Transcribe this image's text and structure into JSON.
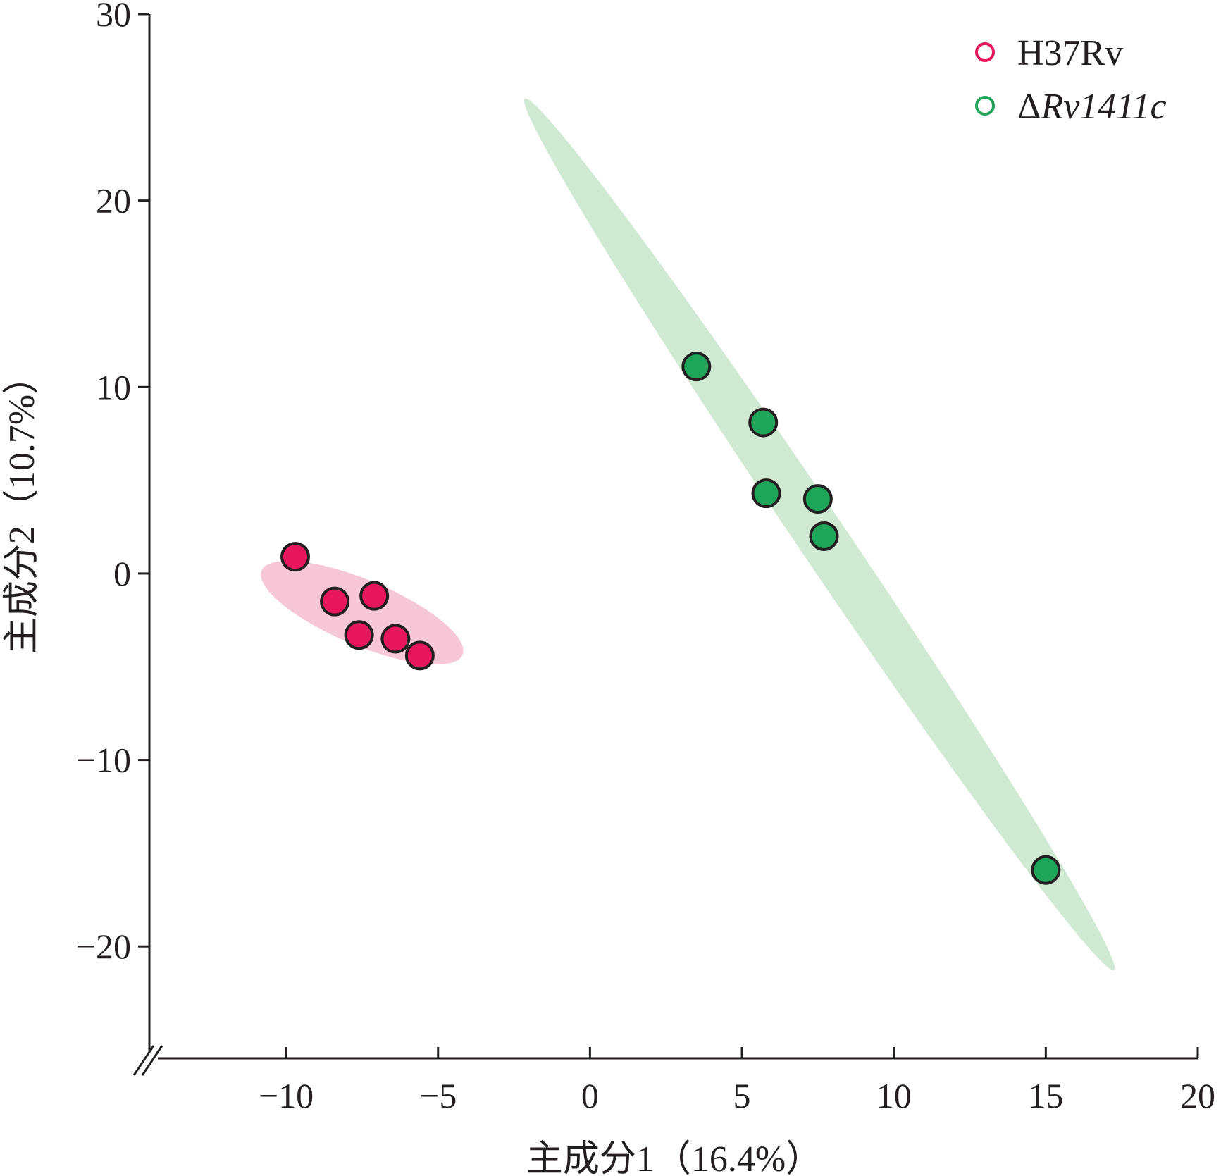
{
  "chart_data": {
    "type": "scatter",
    "title": "",
    "xlabel": "主成分1（16.4%）",
    "ylabel": "主成分2（10.7%）",
    "xlim": [
      -14.5,
      20
    ],
    "ylim": [
      -26,
      30
    ],
    "x_ticks": [
      -10,
      -5,
      0,
      5,
      10,
      15,
      20
    ],
    "y_ticks": [
      -20,
      -10,
      0,
      10,
      20,
      30
    ],
    "x_tick_labels": [
      "−10",
      "−5",
      "0",
      "5",
      "10",
      "15",
      "20"
    ],
    "y_tick_labels": [
      "−20",
      "−10",
      "0",
      "10",
      "20",
      "30"
    ],
    "axis_break": "origin",
    "grid": false,
    "legend_position": "top-right",
    "series": [
      {
        "name": "H37Rv",
        "name_prefix": "",
        "name_italic": "",
        "color": "#e8175d",
        "ellipse_color": "#f6c7d6",
        "x": [
          -9.7,
          -8.4,
          -7.6,
          -7.1,
          -6.4,
          -5.6
        ],
        "y": [
          0.9,
          -1.5,
          -3.3,
          -1.2,
          -3.5,
          -4.4
        ],
        "ellipse": {
          "center": [
            -7.5,
            -2.1
          ],
          "semi_major": 4.05,
          "semi_minor": 1.55,
          "angle_deg": -38
        }
      },
      {
        "name": "ΔRv1411c",
        "name_prefix": "Δ",
        "name_italic": "Rv1411c",
        "color": "#1fa55a",
        "ellipse_color": "#cfe9d3",
        "x": [
          3.5,
          5.7,
          5.8,
          7.5,
          7.7,
          15.0
        ],
        "y": [
          11.1,
          8.1,
          4.3,
          4.0,
          2.0,
          -15.9
        ],
        "ellipse": {
          "center": [
            7.55,
            2.1
          ],
          "semi_major": 25.3,
          "semi_minor": 0.9,
          "angle_deg": -67.5
        }
      }
    ]
  }
}
